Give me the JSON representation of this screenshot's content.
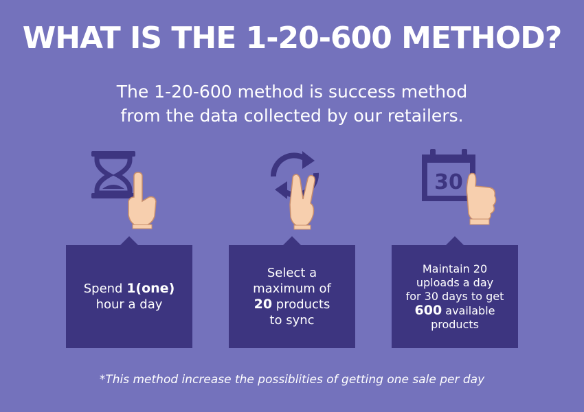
{
  "title": "WHAT IS THE 1-20-600 METHOD?",
  "subtitle": {
    "line1": "The 1-20-600 method is success method",
    "line2": "from the data collected by our retailers."
  },
  "steps": [
    {
      "icon": "hourglass-icon",
      "hand": "one-finger-hand-icon",
      "pre": "Spend ",
      "bold": "1(one)",
      "post": "hour a day"
    },
    {
      "icon": "sync-icon",
      "hand": "two-fingers-hand-icon",
      "line1": "Select a",
      "line2": "maximum of",
      "bold": "20",
      "bold_suffix": " products",
      "post": "to sync"
    },
    {
      "icon": "calendar-icon",
      "hand": "thumbs-up-hand-icon",
      "calendar_number": "30",
      "line1": "Maintain 20",
      "line2": "uploads a day",
      "line3": "for 30 days to get",
      "bold": "600",
      "bold_suffix": " available",
      "post": "products"
    }
  ],
  "footnote": "*This method increase the possiblities of getting one sale per day",
  "colors": {
    "background": "#7472bc",
    "box": "#3d3580",
    "skin": "#f7cfae"
  }
}
